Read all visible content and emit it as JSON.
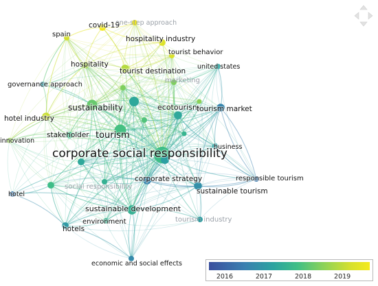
{
  "nodes": [
    {
      "label": "covid-19",
      "year": 2019.8,
      "weight": 3,
      "fs": 10.5,
      "faint": false
    },
    {
      "label": "one-step approach",
      "year": 2019.6,
      "weight": 2,
      "fs": 9.5,
      "faint": true
    },
    {
      "label": "spain",
      "year": 2019.0,
      "weight": 2,
      "fs": 10,
      "faint": false
    },
    {
      "label": "hospitality industry",
      "year": 2019.2,
      "weight": 3,
      "fs": 10.5,
      "faint": false
    },
    {
      "label": "tourist behavior",
      "year": 2019.1,
      "weight": 2,
      "fs": 10,
      "faint": false
    },
    {
      "label": "hospitality",
      "year": 2018.6,
      "weight": 3,
      "fs": 10.5,
      "faint": false
    },
    {
      "label": "tourist destination",
      "year": 2018.7,
      "weight": 4,
      "fs": 10.5,
      "faint": false
    },
    {
      "label": "united states",
      "year": 2017.0,
      "weight": 2,
      "fs": 9.5,
      "faint": false
    },
    {
      "label": "marketing",
      "year": 2018.2,
      "weight": 2,
      "fs": 10,
      "faint": true
    },
    {
      "label": "governance approach",
      "year": 2016.8,
      "weight": 2,
      "fs": 10,
      "faint": false
    },
    {
      "label": "sustainability",
      "year": 2018.0,
      "weight": 6,
      "fs": 12,
      "faint": false
    },
    {
      "label": "ecotourism",
      "year": 2017.1,
      "weight": 4,
      "fs": 11,
      "faint": false
    },
    {
      "label": "tourism market",
      "year": 2016.4,
      "weight": 4,
      "fs": 10.5,
      "faint": false
    },
    {
      "label": "hotel industry",
      "year": 2018.9,
      "weight": 4,
      "fs": 10.5,
      "faint": false
    },
    {
      "label": "tourism",
      "year": 2017.7,
      "weight": 7,
      "fs": 13,
      "faint": false
    },
    {
      "label": "stakeholder",
      "year": 2017.6,
      "weight": 3,
      "fs": 10.5,
      "faint": false
    },
    {
      "label": "innovation",
      "year": 2018.4,
      "weight": 2,
      "fs": 9.5,
      "faint": false
    },
    {
      "label": "business",
      "year": 2016.9,
      "weight": 2,
      "fs": 9.5,
      "faint": false
    },
    {
      "label": "corporate social responsibility",
      "year": 2017.6,
      "weight": 11,
      "fs": 17,
      "faint": false
    },
    {
      "label": "responsible tourism",
      "year": 2016.2,
      "weight": 2,
      "fs": 10,
      "faint": false
    },
    {
      "label": "corporate strategy",
      "year": 2016.4,
      "weight": 4,
      "fs": 10.5,
      "faint": false
    },
    {
      "label": "hotel",
      "year": 2016.2,
      "weight": 2,
      "fs": 9.5,
      "faint": false
    },
    {
      "label": "social responsibility",
      "year": 2017.6,
      "weight": 3,
      "fs": 10,
      "faint": true
    },
    {
      "label": "sustainable tourism",
      "year": 2016.6,
      "weight": 4,
      "fs": 10.5,
      "faint": false
    },
    {
      "label": "sustainable development",
      "year": 2017.3,
      "weight": 5,
      "fs": 11,
      "faint": false
    },
    {
      "label": "environment",
      "year": 2017.4,
      "weight": 2,
      "fs": 10,
      "faint": false
    },
    {
      "label": "hotels",
      "year": 2016.8,
      "weight": 3,
      "fs": 10.5,
      "faint": false
    },
    {
      "label": "tourism industry",
      "year": 2016.9,
      "weight": 2,
      "fs": 10,
      "faint": true
    },
    {
      "label": "economic and social effects",
      "year": 2016.5,
      "weight": 2,
      "fs": 9.5,
      "faint": false
    }
  ],
  "edges": [
    [
      18,
      14
    ],
    [
      18,
      10
    ],
    [
      18,
      24
    ],
    [
      18,
      20
    ],
    [
      18,
      23
    ],
    [
      18,
      12
    ],
    [
      18,
      11
    ],
    [
      18,
      6
    ],
    [
      18,
      5
    ],
    [
      18,
      3
    ],
    [
      18,
      0
    ],
    [
      18,
      2
    ],
    [
      18,
      9
    ],
    [
      18,
      13
    ],
    [
      18,
      15
    ],
    [
      18,
      16
    ],
    [
      18,
      17
    ],
    [
      18,
      19
    ],
    [
      18,
      21
    ],
    [
      18,
      22
    ],
    [
      18,
      25
    ],
    [
      18,
      26
    ],
    [
      18,
      27
    ],
    [
      18,
      28
    ],
    [
      18,
      7
    ],
    [
      18,
      8
    ],
    [
      18,
      4
    ],
    [
      18,
      1
    ],
    [
      14,
      10
    ],
    [
      14,
      24
    ],
    [
      14,
      11
    ],
    [
      14,
      6
    ],
    [
      14,
      5
    ],
    [
      14,
      15
    ],
    [
      14,
      13
    ],
    [
      14,
      23
    ],
    [
      14,
      12
    ],
    [
      14,
      22
    ],
    [
      14,
      26
    ],
    [
      10,
      6
    ],
    [
      10,
      5
    ],
    [
      10,
      13
    ],
    [
      10,
      9
    ],
    [
      10,
      15
    ],
    [
      10,
      2
    ],
    [
      10,
      24
    ],
    [
      10,
      16
    ],
    [
      10,
      3
    ],
    [
      24,
      26
    ],
    [
      24,
      25
    ],
    [
      24,
      23
    ],
    [
      24,
      20
    ],
    [
      24,
      28
    ],
    [
      24,
      22
    ],
    [
      24,
      21
    ],
    [
      6,
      3
    ],
    [
      6,
      4
    ],
    [
      6,
      0
    ],
    [
      6,
      5
    ],
    [
      6,
      8
    ],
    [
      6,
      11
    ],
    [
      0,
      2
    ],
    [
      0,
      3
    ],
    [
      0,
      1
    ],
    [
      0,
      5
    ],
    [
      3,
      4
    ],
    [
      3,
      5
    ],
    [
      2,
      5
    ],
    [
      2,
      9
    ],
    [
      12,
      7
    ],
    [
      12,
      11
    ],
    [
      12,
      17
    ],
    [
      12,
      19
    ],
    [
      12,
      23
    ],
    [
      20,
      23
    ],
    [
      20,
      19
    ],
    [
      23,
      19
    ],
    [
      17,
      19
    ],
    [
      13,
      15
    ],
    [
      13,
      16
    ],
    [
      13,
      9
    ],
    [
      9,
      5
    ],
    [
      26,
      21
    ],
    [
      26,
      25
    ],
    [
      22,
      26
    ],
    [
      22,
      24
    ],
    [
      27,
      24
    ],
    [
      27,
      23
    ],
    [
      28,
      24
    ],
    [
      28,
      26
    ],
    [
      11,
      7
    ],
    [
      11,
      17
    ],
    [
      8,
      7
    ],
    [
      15,
      16
    ],
    [
      5,
      13
    ],
    [
      20,
      11
    ],
    [
      21,
      22
    ],
    [
      19,
      12
    ],
    [
      2,
      13
    ]
  ],
  "legend": {
    "ticks": [
      {
        "value": 2016,
        "label": "2016"
      },
      {
        "value": 2017,
        "label": "2017"
      },
      {
        "value": 2018,
        "label": "2018"
      },
      {
        "value": 2019,
        "label": "2019"
      }
    ],
    "min": 2015.6,
    "max": 2019.7
  },
  "colors": {
    "stops": [
      "#3b4f9e",
      "#3a7fb0",
      "#2ba3a0",
      "#3fbf86",
      "#8fd356",
      "#d6e02e",
      "#f4ea1c"
    ]
  },
  "icons": {
    "navigator": "pan-arrows-icon"
  }
}
